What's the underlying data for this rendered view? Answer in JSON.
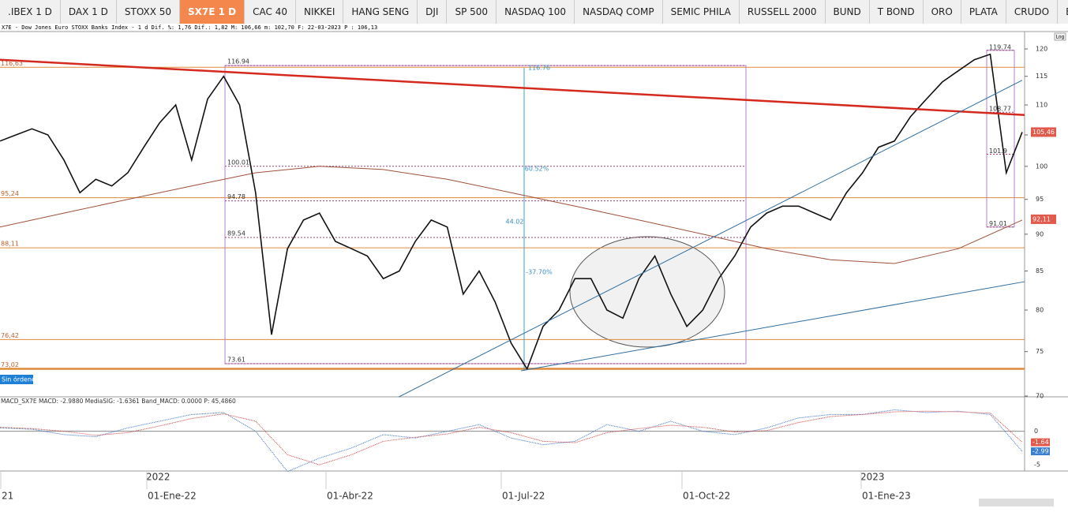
{
  "tabs": [
    ".IBEX 1 D",
    "DAX 1 D",
    "STOXX 50",
    "SX7E 1 D",
    "CAC 40",
    "NIKKEI",
    "HANG SENG",
    "DJI",
    "SP 500",
    "NASDAQ 100",
    "NASDAQ COMP",
    "SEMIC PHILA",
    "RUSSELL 2000",
    "BUND",
    "T BOND",
    "ORO",
    "PLATA",
    "CRUDO",
    "EU..."
  ],
  "active_tab": "SX7E 1 D",
  "info": "X7E - Dow Jones Euro STOXX Banks Index -  1 d Dif. %: 1,76 Dif.: 1,82 M: 106,66 m: 102,70 F: 22-03-2023 P : 106,13",
  "orders": "Sin órdenes",
  "log_label": "Log",
  "price": {
    "scale": "log",
    "ylim": [
      70,
      120
    ],
    "yticks": [
      70,
      75,
      80,
      85,
      90,
      95,
      100,
      105,
      110,
      115,
      120
    ],
    "close": [
      104,
      105,
      106,
      105,
      101,
      96,
      98,
      97,
      99,
      103,
      107,
      110,
      101,
      111,
      115,
      110,
      96,
      77,
      88,
      92,
      93,
      89,
      88,
      87,
      84,
      85,
      89,
      92,
      91,
      82,
      85,
      81,
      76,
      73,
      78,
      80,
      84,
      84,
      80,
      79,
      84,
      87,
      82,
      78,
      80,
      84,
      87,
      91,
      93,
      94,
      94,
      93,
      92,
      96,
      99,
      103,
      104,
      108,
      111,
      114,
      116,
      118,
      119,
      99,
      105.46
    ],
    "ma200": [
      91,
      93,
      95,
      97,
      99,
      100,
      99.5,
      98,
      96,
      94,
      92,
      90,
      88,
      86.5,
      86,
      88,
      92
    ],
    "levels": [
      {
        "value": 116.63,
        "label": "116,63"
      },
      {
        "value": 95.24,
        "label": "95,24"
      },
      {
        "value": 88.11,
        "label": "88,11"
      },
      {
        "value": 76.42,
        "label": "76,42"
      },
      {
        "value": 73.02,
        "label": "73,02"
      }
    ],
    "fib": [
      116.94,
      100.01,
      94.78,
      89.54,
      73.61
    ],
    "fib2": [
      119.74,
      108.77,
      101.9,
      91.01
    ],
    "annotations": [
      "60.52%",
      "44.02",
      "-37.70%",
      "116.76"
    ],
    "red_trend": [
      118,
      108.3
    ],
    "blue_trend_1": [
      69.9,
      114.3
    ],
    "blue_trend_2": [
      72.8,
      83.6
    ],
    "last_labels": [
      {
        "value": 105.46,
        "label": "105,46"
      },
      {
        "value": 92.11,
        "label": "92,11"
      }
    ]
  },
  "macd": {
    "title": "MACD_SX7E MACD: -2.9880 MediaSIG: -1.6361 Band_MACD: 0.0000 P: 45,4860",
    "ylim": [
      -5.8,
      4.9
    ],
    "yticks": [
      0,
      -5
    ],
    "macd": [
      0.5,
      0.3,
      -0.5,
      -0.8,
      0.5,
      1.5,
      2.5,
      2.8,
      0,
      -6,
      -4,
      -2.5,
      -0.5,
      -1,
      0,
      1,
      -1,
      -2,
      -1.5,
      1,
      0,
      1.5,
      0,
      -0.5,
      0.5,
      2,
      2.5,
      2.5,
      3.2,
      2.8,
      3,
      2.5,
      -2.99
    ],
    "signal": [
      0.6,
      0.4,
      0,
      -0.6,
      -0.2,
      0.8,
      1.9,
      2.6,
      1.5,
      -3.5,
      -5,
      -3.5,
      -1.5,
      -0.9,
      -0.4,
      0.6,
      -0.2,
      -1.5,
      -1.7,
      -0.2,
      0.4,
      0.9,
      0.6,
      -0.1,
      0.1,
      1.3,
      2.2,
      2.5,
      2.9,
      3,
      2.9,
      2.7,
      -1.64
    ],
    "last_labels": [
      -1.64,
      -2.99
    ]
  },
  "dates": {
    "years": [
      "2022",
      "2023"
    ],
    "labels": [
      "21",
      "01-Ene-22",
      "01-Abr-22",
      "01-Jul-22",
      "01-Oct-22",
      "01-Ene-23"
    ]
  }
}
